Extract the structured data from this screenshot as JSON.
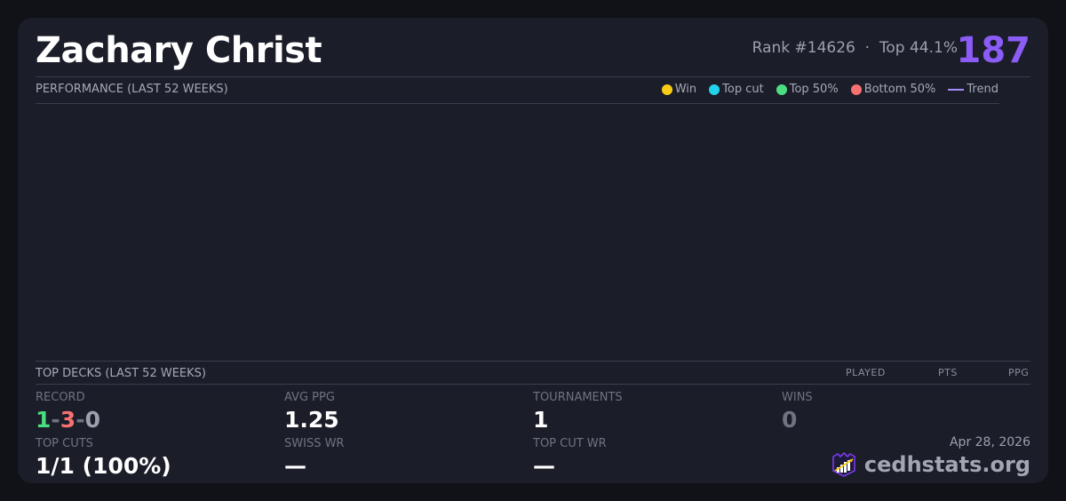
{
  "header": {
    "player_name": "Zachary Christ",
    "rank": "Rank #14626",
    "separator": "·",
    "top_percent": "Top 44.1%",
    "score": "187",
    "score_color": "#8b5cf6"
  },
  "performance": {
    "title": "PERFORMANCE (LAST 52 WEEKS)",
    "legend": [
      {
        "label": "Win",
        "color": "#facc15"
      },
      {
        "label": "Top cut",
        "color": "#22d3ee"
      },
      {
        "label": "Top 50%",
        "color": "#4ade80"
      },
      {
        "label": "Bottom 50%",
        "color": "#f87171"
      },
      {
        "label": "Trend",
        "color": "#a78bfa",
        "icon": "line"
      }
    ]
  },
  "top_decks": {
    "title": "TOP DECKS (LAST 52 WEEKS)",
    "columns": [
      "PLAYED",
      "PTS",
      "PPG"
    ]
  },
  "stats": {
    "record_label": "RECORD",
    "record_wins": "1",
    "record_losses": "3",
    "record_draws": "0",
    "dash": "-",
    "avg_ppg_label": "AVG PPG",
    "avg_ppg": "1.25",
    "tournaments_label": "TOURNAMENTS",
    "tournaments": "1",
    "wins_label": "WINS",
    "wins": "0",
    "top_cuts_label": "TOP CUTS",
    "top_cuts": "1/1 (100%)",
    "swiss_wr_label": "SWISS WR",
    "swiss_wr": "—",
    "top_cut_wr_label": "TOP CUT WR",
    "top_cut_wr": "—"
  },
  "footer": {
    "date": "Apr 28, 2026",
    "brand": "cedhstats.org",
    "logo_icon": "crown-chart-logo"
  }
}
